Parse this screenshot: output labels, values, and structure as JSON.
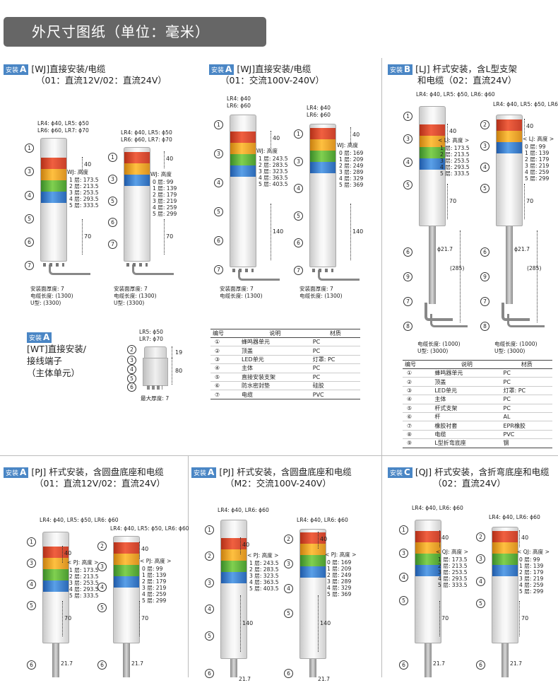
{
  "header": {
    "title": "外尺寸图纸（单位：毫米）"
  },
  "sections": {
    "s1": {
      "badge": "安装",
      "letter": "A",
      "title": "[WJ]直接安装/电缆",
      "sub": "（01：直流12V/02：直流24V）"
    },
    "s2": {
      "badge": "安装",
      "letter": "A",
      "title": "[WJ]直接安装/电缆",
      "sub": "（01：交流100V-240V）"
    },
    "s3": {
      "badge": "安装",
      "letter": "B",
      "title": "[LJ] 杆式安装，含L型支架",
      "sub": "和电缆（02：直流24V）"
    },
    "s4": {
      "badge": "安装",
      "letter": "A",
      "title_lines": [
        "[WT]直接安装/",
        "接线端子",
        "（主体单元）"
      ]
    },
    "s5": {
      "badge": "安装",
      "letter": "A",
      "title": "[PJ] 杆式安装，含圆盘底座和电缆",
      "sub": "（01：直流12V/02：直流24V）"
    },
    "s6": {
      "badge": "安装",
      "letter": "A",
      "title": "[PJ] 杆式安装，含圆盘底座和电缆",
      "sub": "（M2：交流100V-240V）"
    },
    "s7": {
      "badge": "安装",
      "letter": "C",
      "title": "[QJ] 杆式安装，含折弯底座和电缆",
      "sub": "（02：直流24V）"
    }
  },
  "diagrams": {
    "d1": {
      "dia1": "LR4: ϕ40, LR5: ϕ50",
      "dia2": "LR6: ϕ60, LR7: ϕ70",
      "height_title": "WJ: 高度",
      "heights": [
        "1 层: 173.5",
        "2 层: 213.5",
        "3 层: 253.5",
        "4 层: 293.5",
        "5 层: 333.5"
      ],
      "top_dim": "40",
      "bottom_dim": "70",
      "notes": [
        "安装面厚度: 7",
        "电缆长度: (1300)",
        "U型: (3300)"
      ]
    },
    "d2": {
      "dia1": "LR4: ϕ40, LR5: ϕ50",
      "dia2": "LR6: ϕ60, LR7: ϕ70",
      "height_title": "WJ: 高度",
      "heights": [
        "0 层: 99",
        "1 层: 139",
        "2 层: 179",
        "3 层: 219",
        "4 层: 259",
        "5 层: 299"
      ],
      "top_dim": "40",
      "bottom_dim": "70",
      "notes": [
        "安装面厚度: 7",
        "电缆长度: (1300)",
        "U型: (3300)"
      ]
    },
    "d3": {
      "dia1": "LR4: ϕ40",
      "dia2": "LR6: ϕ60",
      "height_title": "WJ: 高度",
      "heights": [
        "1 层: 243.5",
        "2 层: 283.5",
        "3 层: 323.5",
        "4 层: 363.5",
        "5 层: 403.5"
      ],
      "top_dim": "40",
      "bottom_dim": "140",
      "notes": [
        "安装面厚度: 7",
        "电缆长度: (1300)"
      ]
    },
    "d4": {
      "dia1": "LR4: ϕ40",
      "dia2": "LR6: ϕ60",
      "height_title": "WJ: 高度",
      "heights": [
        "0 层: 169",
        "1 层: 209",
        "2 层: 249",
        "3 层: 289",
        "4 层: 329",
        "5 层: 369"
      ],
      "top_dim": "40",
      "bottom_dim": "140",
      "notes": [
        "安装面厚度: 7",
        "电缆长度: (1300)"
      ]
    },
    "d5": {
      "dia1": "LR4: ϕ40, LR5: ϕ50, LR6: ϕ60",
      "height_title": "< LJ: 高度 >",
      "heights": [
        "1 层: 173.5",
        "2 层: 213.5",
        "3 层: 253.5",
        "4 层: 293.5",
        "5 层: 333.5"
      ],
      "top_dim": "40",
      "bottom_dim": "70",
      "pole_dia": "ϕ21.7",
      "pole_len": "(285)",
      "notes": [
        "电缆长度: (1000)",
        "U型: (3000)"
      ]
    },
    "d6": {
      "dia1": "LR4: ϕ40, LR5: ϕ50, LR6: ϕ60",
      "height_title": "< LJ: 高度 >",
      "heights": [
        "0 层: 99",
        "1 层: 139",
        "2 层: 179",
        "3 层: 219",
        "4 层: 259",
        "5 层: 299"
      ],
      "top_dim": "40",
      "bottom_dim": "70",
      "pole_dia": "ϕ21.7",
      "pole_len": "(285)",
      "notes": [
        "电缆长度: (1000)",
        "U型: (3000)"
      ]
    },
    "d7": {
      "dia1": "LR5: ϕ50",
      "dia2": "LR7: ϕ70",
      "dims": [
        "19",
        "80"
      ],
      "note": "最大厚度: 7"
    },
    "d8": {
      "dia1": "LR4: ϕ40, LR5: ϕ50, LR6: ϕ60",
      "height_title": "< PJ: 高度 >",
      "heights": [
        "1 层: 173.5",
        "2 层: 213.5",
        "3 层: 253.5",
        "4 层: 293.5",
        "5 层: 333.5"
      ],
      "top_dim": "40",
      "bottom_dim": "70",
      "pole_dia": "21.7"
    },
    "d9": {
      "dia1": "LR4: ϕ40, LR5: ϕ50, LR6: ϕ60",
      "height_title": "< PJ: 高度 >",
      "heights": [
        "0 层: 99",
        "1 层: 139",
        "2 层: 179",
        "3 层: 219",
        "4 层: 259",
        "5 层: 299"
      ],
      "top_dim": "40",
      "bottom_dim": "70",
      "pole_dia": "21.7"
    },
    "d10": {
      "dia1": "LR4: ϕ40, LR6: ϕ60",
      "height_title": "< PJ: 高度 >",
      "heights": [
        "1 层: 243.5",
        "2 层: 283.5",
        "3 层: 323.5",
        "4 层: 363.5",
        "5 层: 403.5"
      ],
      "top_dim": "40",
      "bottom_dim": "140",
      "pole_dia": "21.7"
    },
    "d11": {
      "dia1": "LR4: ϕ40, LR6: ϕ60",
      "height_title": "< PJ: 高度 >",
      "heights": [
        "0 层: 169",
        "1 层: 209",
        "2 层: 249",
        "3 层: 289",
        "4 层: 329",
        "5 层: 369"
      ],
      "top_dim": "40",
      "bottom_dim": "140",
      "pole_dia": "21.7"
    },
    "d12": {
      "dia1": "LR4: ϕ40, LR6: ϕ60",
      "height_title": "< QJ: 高度 >",
      "heights": [
        "1 层: 173.5",
        "2 层: 213.5",
        "3 层: 253.5",
        "4 层: 293.5",
        "5 层: 333.5"
      ],
      "top_dim": "40",
      "bottom_dim": "70",
      "pole_dia": "21.7"
    },
    "d13": {
      "dia1": "LR4: ϕ40, LR6: ϕ60",
      "height_title": "< QJ: 高度 >",
      "heights": [
        "0 层: 99",
        "1 层: 139",
        "2 层: 179",
        "3 层: 219",
        "4 层: 259",
        "5 层: 299"
      ],
      "top_dim": "40",
      "bottom_dim": "70",
      "pole_dia": "21.7"
    }
  },
  "table1": {
    "headers": [
      "编号",
      "说明",
      "材质"
    ],
    "rows": [
      [
        "①",
        "蜂鸣器单元",
        "PC"
      ],
      [
        "②",
        "顶盖",
        "PC"
      ],
      [
        "③",
        "LED单元",
        "灯罩: PC"
      ],
      [
        "④",
        "主体",
        "PC"
      ],
      [
        "⑤",
        "直接安装支架",
        "PC"
      ],
      [
        "⑥",
        "防水密封垫",
        "硅胶"
      ],
      [
        "⑦",
        "电缆",
        "PVC"
      ]
    ]
  },
  "table2": {
    "headers": [
      "编号",
      "说明",
      "材质"
    ],
    "rows": [
      [
        "①",
        "蜂鸣器单元",
        "PC"
      ],
      [
        "②",
        "顶盖",
        "PC"
      ],
      [
        "③",
        "LED单元",
        "灯罩: PC"
      ],
      [
        "④",
        "主体",
        "PC"
      ],
      [
        "⑤",
        "杆式支架",
        "PC"
      ],
      [
        "⑥",
        "杆",
        "AL"
      ],
      [
        "⑦",
        "橡胶衬套",
        "EPR橡胶"
      ],
      [
        "⑧",
        "电缆",
        "PVC"
      ],
      [
        "⑨",
        "L型折弯底座",
        "钢"
      ]
    ]
  }
}
